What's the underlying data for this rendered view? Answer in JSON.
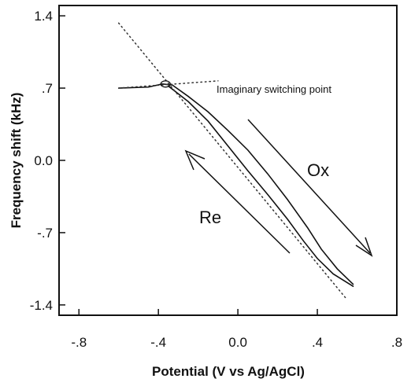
{
  "chart_data": {
    "type": "line",
    "xlabel": "Potential (V vs Ag/AgCl)",
    "ylabel": "Frequency shift (kHz)",
    "xlim": [
      -0.9,
      0.8
    ],
    "ylim": [
      -1.5,
      1.5
    ],
    "xticks": [
      {
        "value": -0.8,
        "label": "-.8"
      },
      {
        "value": -0.4,
        "label": "-.4"
      },
      {
        "value": 0,
        "label": "0.0"
      },
      {
        "value": 0.4,
        "label": ".4"
      },
      {
        "value": 0.8,
        "label": ".8"
      }
    ],
    "yticks": [
      {
        "value": -1.4,
        "label": "-1.4"
      },
      {
        "value": -0.7,
        "label": "-.7"
      },
      {
        "value": 0,
        "label": "0.0"
      },
      {
        "value": 0.7,
        "label": ".7"
      },
      1.4
    ],
    "series": [
      {
        "color": "#111",
        "dashed": false,
        "x": [
          -0.6,
          -0.45,
          -0.38,
          -0.33,
          -0.25,
          -0.15,
          -0.05,
          0.05,
          0.15,
          0.25,
          0.35,
          0.42,
          0.5,
          0.58
        ],
        "values": [
          0.7,
          0.71,
          0.74,
          0.73,
          0.62,
          0.47,
          0.29,
          0.1,
          -0.13,
          -0.38,
          -0.65,
          -0.86,
          -1.05,
          -1.2
        ]
      },
      {
        "color": "#111",
        "dashed": false,
        "x": [
          -0.35,
          -0.25,
          -0.15,
          -0.05,
          0.05,
          0.15,
          0.25,
          0.33,
          0.4,
          0.48,
          0.58
        ],
        "values": [
          0.72,
          0.57,
          0.38,
          0.14,
          -0.1,
          -0.33,
          -0.57,
          -0.78,
          -0.95,
          -1.1,
          -1.22
        ]
      },
      {
        "color": "#333",
        "dashed": true,
        "x": [
          -0.6,
          0.55
        ],
        "values": [
          1.33,
          -1.35
        ]
      },
      {
        "color": "#333",
        "dashed": true,
        "x": [
          -0.6,
          -0.1
        ],
        "values": [
          0.7,
          0.77
        ]
      }
    ],
    "annotations": [
      "Imaginary switching point",
      "Ox",
      "Re"
    ]
  }
}
